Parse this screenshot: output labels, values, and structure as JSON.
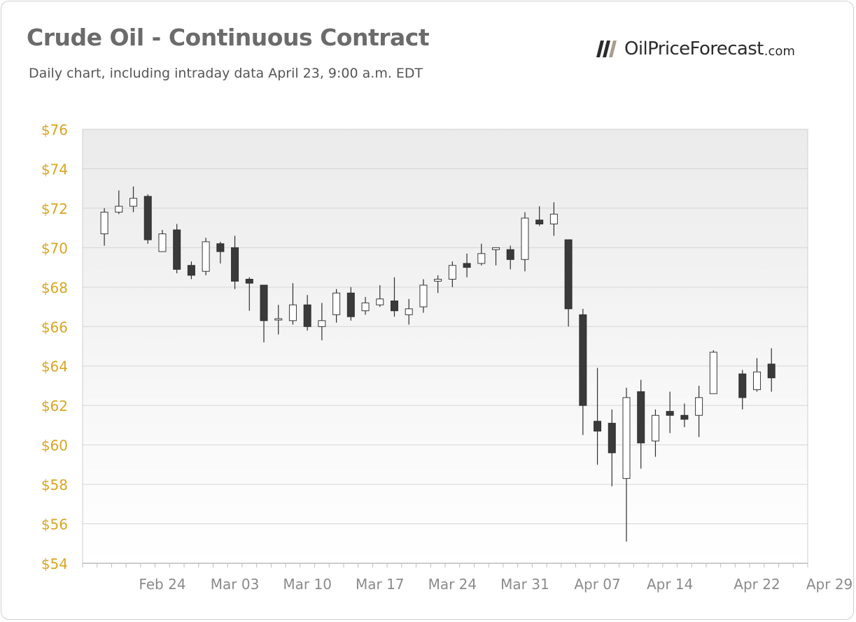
{
  "header": {
    "title": "Crude Oil - Continuous Contract",
    "subtitle": "Daily chart, including intraday data April 23, 9:00 a.m. EDT"
  },
  "logo": {
    "name": "OilPriceForecast",
    "tld": ".com"
  },
  "colors": {
    "title": "#6b6b6b",
    "y_tick_labels": "#d9a521",
    "x_tick_labels": "#8a8a8a",
    "bearish_body": "#3a3a3a",
    "bullish_body": "#ffffff",
    "gridline": "#d6d6d6",
    "plot_top": "#ebebeb",
    "plot_bottom": "#ffffff"
  },
  "chart_data": {
    "type": "candlestick",
    "title": "Crude Oil - Continuous Contract",
    "subtitle": "Daily chart, including intraday data April 23, 9:00 a.m. EDT",
    "ylim": [
      54,
      76
    ],
    "y_ticks": [
      76,
      74,
      72,
      70,
      68,
      66,
      64,
      62,
      60,
      58,
      56,
      54
    ],
    "y_tick_labels": [
      "$76",
      "$74",
      "$72",
      "$70",
      "$68",
      "$66",
      "$64",
      "$62",
      "$60",
      "$58",
      "$56",
      "$54"
    ],
    "x_tick_labels": [
      "Feb 24",
      "Mar 03",
      "Mar 10",
      "Mar 17",
      "Mar 24",
      "Mar 31",
      "Apr 07",
      "Apr 14",
      "Apr 22",
      "Apr 29"
    ],
    "grid": "horizontal",
    "legend": "none",
    "candles": [
      {
        "date": "Feb 18",
        "open": 70.7,
        "high": 72.0,
        "low": 70.1,
        "close": 71.8
      },
      {
        "date": "Feb 19",
        "open": 71.8,
        "high": 72.9,
        "low": 71.7,
        "close": 72.1
      },
      {
        "date": "Feb 20",
        "open": 72.1,
        "high": 73.1,
        "low": 71.8,
        "close": 72.5
      },
      {
        "date": "Feb 21",
        "open": 72.6,
        "high": 72.7,
        "low": 70.2,
        "close": 70.4
      },
      {
        "date": "Feb 24",
        "open": 69.8,
        "high": 70.9,
        "low": 69.8,
        "close": 70.7
      },
      {
        "date": "Feb 25",
        "open": 70.9,
        "high": 71.2,
        "low": 68.7,
        "close": 68.9
      },
      {
        "date": "Feb 26",
        "open": 69.1,
        "high": 69.3,
        "low": 68.4,
        "close": 68.6
      },
      {
        "date": "Feb 27",
        "open": 68.8,
        "high": 70.5,
        "low": 68.6,
        "close": 70.3
      },
      {
        "date": "Feb 28",
        "open": 70.2,
        "high": 70.3,
        "low": 69.2,
        "close": 69.8
      },
      {
        "date": "Mar 03",
        "open": 70.0,
        "high": 70.6,
        "low": 67.9,
        "close": 68.3
      },
      {
        "date": "Mar 04",
        "open": 68.4,
        "high": 68.5,
        "low": 66.8,
        "close": 68.2
      },
      {
        "date": "Mar 05",
        "open": 68.1,
        "high": 68.1,
        "low": 65.2,
        "close": 66.3
      },
      {
        "date": "Mar 06",
        "open": 66.4,
        "high": 67.1,
        "low": 65.6,
        "close": 66.4
      },
      {
        "date": "Mar 07",
        "open": 66.3,
        "high": 68.2,
        "low": 66.1,
        "close": 67.1
      },
      {
        "date": "Mar 10",
        "open": 67.1,
        "high": 67.6,
        "low": 65.8,
        "close": 66.0
      },
      {
        "date": "Mar 11",
        "open": 66.0,
        "high": 67.2,
        "low": 65.3,
        "close": 66.3
      },
      {
        "date": "Mar 12",
        "open": 66.6,
        "high": 67.9,
        "low": 66.2,
        "close": 67.7
      },
      {
        "date": "Mar 13",
        "open": 67.7,
        "high": 68.0,
        "low": 66.3,
        "close": 66.5
      },
      {
        "date": "Mar 14",
        "open": 66.8,
        "high": 67.5,
        "low": 66.6,
        "close": 67.2
      },
      {
        "date": "Mar 17",
        "open": 67.1,
        "high": 68.1,
        "low": 67.0,
        "close": 67.4
      },
      {
        "date": "Mar 18",
        "open": 67.3,
        "high": 68.5,
        "low": 66.5,
        "close": 66.8
      },
      {
        "date": "Mar 19",
        "open": 66.6,
        "high": 67.4,
        "low": 66.1,
        "close": 66.9
      },
      {
        "date": "Mar 20",
        "open": 67.0,
        "high": 68.4,
        "low": 66.7,
        "close": 68.1
      },
      {
        "date": "Mar 21",
        "open": 68.3,
        "high": 68.6,
        "low": 67.7,
        "close": 68.4
      },
      {
        "date": "Mar 24",
        "open": 68.4,
        "high": 69.3,
        "low": 68.0,
        "close": 69.1
      },
      {
        "date": "Mar 25",
        "open": 69.2,
        "high": 69.7,
        "low": 68.5,
        "close": 69.0
      },
      {
        "date": "Mar 26",
        "open": 69.2,
        "high": 70.2,
        "low": 69.1,
        "close": 69.7
      },
      {
        "date": "Mar 27",
        "open": 69.9,
        "high": 70.0,
        "low": 69.1,
        "close": 70.0
      },
      {
        "date": "Mar 28",
        "open": 69.9,
        "high": 70.1,
        "low": 68.9,
        "close": 69.4
      },
      {
        "date": "Mar 31",
        "open": 69.4,
        "high": 71.8,
        "low": 68.8,
        "close": 71.5
      },
      {
        "date": "Apr 01",
        "open": 71.4,
        "high": 72.1,
        "low": 71.1,
        "close": 71.2
      },
      {
        "date": "Apr 02",
        "open": 71.2,
        "high": 72.3,
        "low": 70.6,
        "close": 71.7
      },
      {
        "date": "Apr 03",
        "open": 70.4,
        "high": 70.4,
        "low": 66.0,
        "close": 66.9
      },
      {
        "date": "Apr 04",
        "open": 66.6,
        "high": 66.9,
        "low": 60.5,
        "close": 62.0
      },
      {
        "date": "Apr 07",
        "open": 61.2,
        "high": 63.9,
        "low": 59.0,
        "close": 60.7
      },
      {
        "date": "Apr 08",
        "open": 61.1,
        "high": 61.8,
        "low": 57.9,
        "close": 59.6
      },
      {
        "date": "Apr 09",
        "open": 58.3,
        "high": 62.9,
        "low": 55.1,
        "close": 62.4
      },
      {
        "date": "Apr 10",
        "open": 62.7,
        "high": 63.3,
        "low": 58.8,
        "close": 60.1
      },
      {
        "date": "Apr 11",
        "open": 60.2,
        "high": 61.8,
        "low": 59.4,
        "close": 61.5
      },
      {
        "date": "Apr 14",
        "open": 61.7,
        "high": 62.7,
        "low": 60.6,
        "close": 61.5
      },
      {
        "date": "Apr 15",
        "open": 61.5,
        "high": 62.1,
        "low": 60.9,
        "close": 61.3
      },
      {
        "date": "Apr 16",
        "open": 61.5,
        "high": 63.0,
        "low": 60.4,
        "close": 62.4
      },
      {
        "date": "Apr 17",
        "open": 62.6,
        "high": 64.8,
        "low": 62.6,
        "close": 64.7
      },
      {
        "date": "Apr 21",
        "open": 63.6,
        "high": 63.8,
        "low": 61.8,
        "close": 62.4
      },
      {
        "date": "Apr 22",
        "open": 62.8,
        "high": 64.4,
        "low": 62.7,
        "close": 63.7
      },
      {
        "date": "Apr 23",
        "open": 64.1,
        "high": 64.9,
        "low": 62.7,
        "close": 63.4
      }
    ]
  }
}
